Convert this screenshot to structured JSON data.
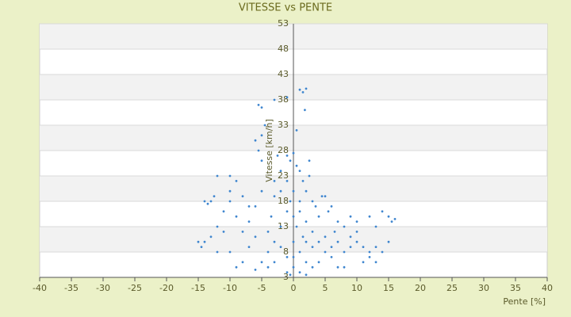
{
  "chart_data": {
    "type": "scatter",
    "title": "VITESSE vs PENTE",
    "x_label": "Pente [%]",
    "y_label": "Vitesse [km/h]",
    "color": "#3f86cf",
    "grid": true,
    "xlim": [
      -40,
      40
    ],
    "xticks": [
      -40,
      -35,
      -30,
      -25,
      -20,
      -15,
      -10,
      -5,
      0,
      5,
      10,
      15,
      20,
      25,
      30,
      35,
      40
    ],
    "ylim": [
      3,
      53
    ],
    "yticks": [
      3,
      8,
      13,
      18,
      23,
      28,
      33,
      38,
      43,
      48,
      53
    ],
    "x": [
      -5.5,
      -5,
      -3,
      -1,
      1,
      1.5,
      2,
      1.8,
      0.5,
      -4.5,
      -5,
      -6,
      -5.5,
      -5,
      -1,
      0,
      -0.5,
      0.5,
      1,
      -2,
      1.5,
      2,
      3,
      3.5,
      4,
      -3,
      -3,
      -2,
      2.5,
      -1,
      0,
      1,
      -1,
      0,
      2,
      3,
      4,
      5,
      -2,
      -3,
      -4,
      0,
      1,
      2,
      -1,
      0,
      1,
      -1,
      3,
      5,
      6,
      6.5,
      5.5,
      4.5,
      2.5,
      -2.5,
      -3.5,
      -4,
      -2,
      1.5,
      0.5,
      -0.5,
      3,
      4,
      -5,
      -3,
      2,
      -0.5,
      0,
      1,
      2,
      -13,
      -12.5,
      -13.5,
      -14,
      -10,
      -10,
      -9,
      -10,
      -11,
      -8,
      -9,
      -12,
      -13,
      -14,
      -15,
      -14.5,
      -12,
      -10,
      -9,
      -8,
      -7,
      -6,
      -7,
      -8,
      -11,
      -6,
      -5,
      -7,
      -12,
      -6,
      -4,
      7,
      8,
      9,
      10,
      11,
      12,
      13,
      14,
      15,
      15.5,
      16,
      13,
      12,
      9,
      10,
      7,
      8,
      9,
      11,
      12,
      14,
      15,
      6,
      7,
      8,
      13,
      10,
      6,
      5
    ],
    "values": [
      37,
      36.5,
      38,
      38.5,
      40,
      39.5,
      40.2,
      36,
      32,
      33,
      31,
      30,
      28,
      26,
      27,
      27.5,
      26,
      25,
      24,
      24,
      22,
      20,
      18,
      17,
      15,
      22,
      19,
      20,
      23,
      22,
      20,
      18,
      16,
      15,
      14,
      12,
      10,
      8,
      13,
      10,
      8,
      10,
      8,
      6,
      7,
      5,
      4,
      4,
      5,
      11,
      9,
      12,
      16,
      19,
      26,
      27,
      15,
      12,
      9,
      11,
      13,
      18,
      9,
      6,
      6,
      6,
      3.5,
      3.5,
      7,
      16,
      10,
      18,
      19,
      17.5,
      18,
      20,
      23,
      22,
      18,
      16,
      19,
      15,
      13,
      11,
      10,
      10,
      9,
      8,
      8,
      5,
      6,
      9,
      11,
      14,
      12,
      12,
      17,
      20,
      17,
      23,
      4.5,
      5,
      14,
      13,
      11,
      10,
      9,
      8,
      9,
      16,
      15,
      14,
      14.5,
      13,
      15,
      15,
      14,
      10,
      8,
      9,
      6,
      7,
      8,
      10,
      7,
      5,
      5,
      6,
      12,
      17,
      19
    ]
  }
}
